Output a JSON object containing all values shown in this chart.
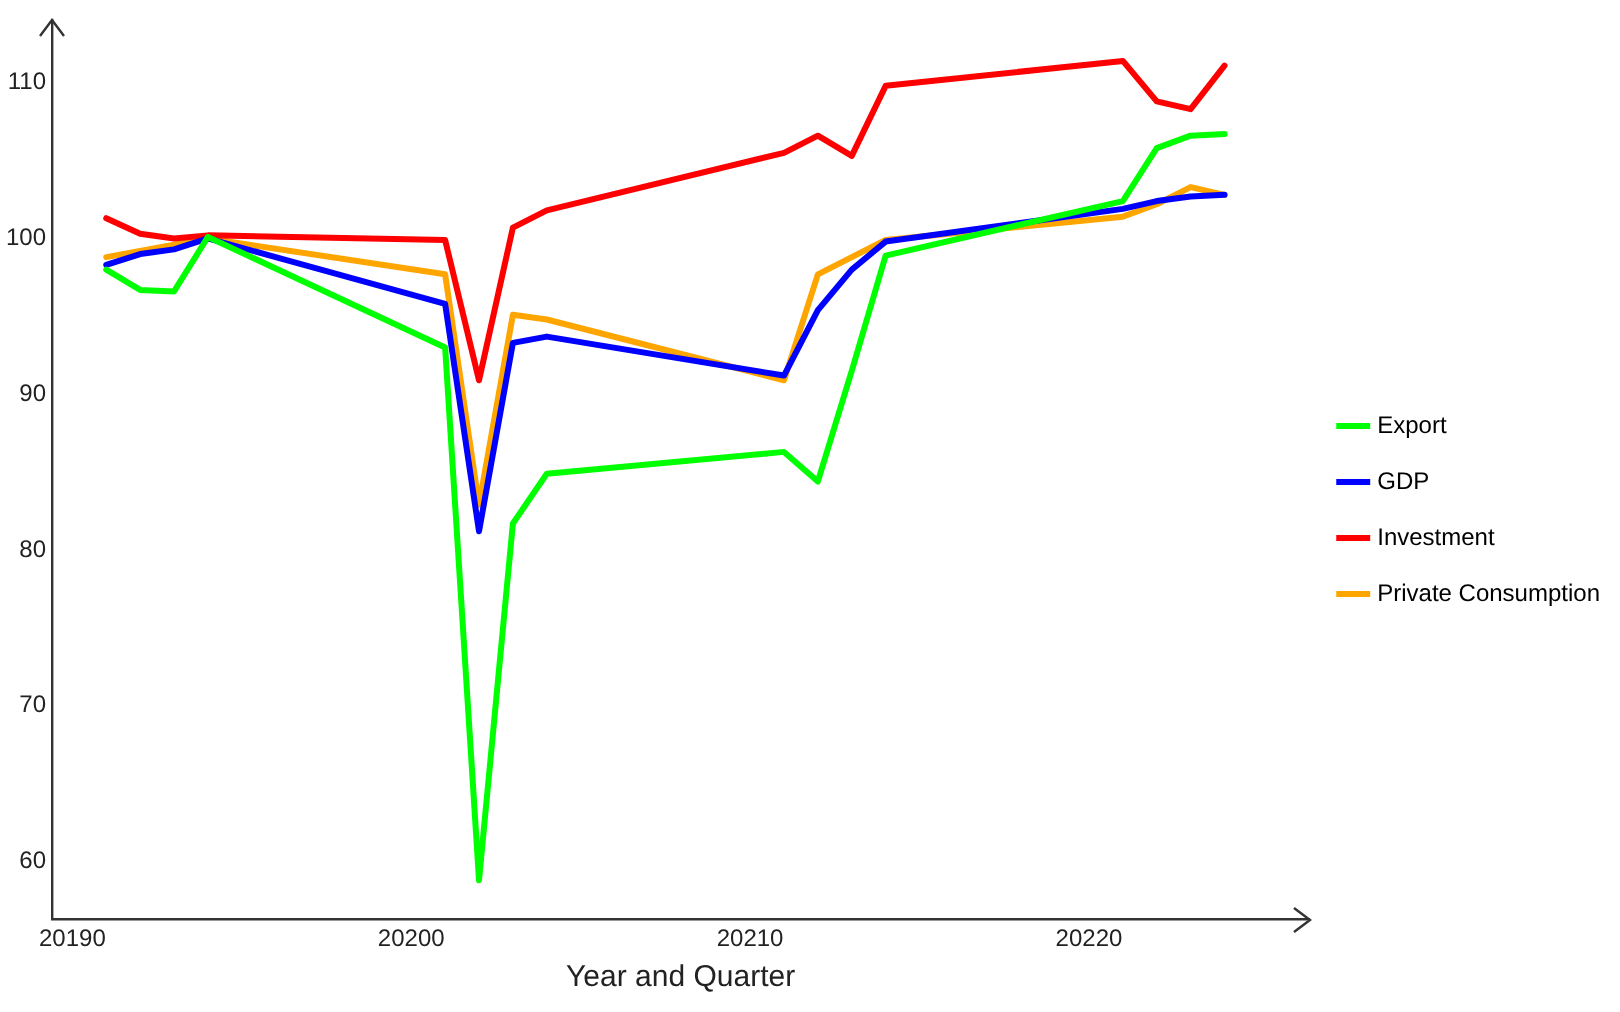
{
  "chart_data": {
    "type": "line",
    "xlabel": "Year and Quarter",
    "x": [
      20191,
      20192,
      20193,
      20194,
      20201,
      20202,
      20203,
      20204,
      20211,
      20212,
      20213,
      20214,
      20221,
      20222,
      20223,
      20224
    ],
    "series": [
      {
        "name": "Export",
        "color": "#00ff00",
        "values": [
          98.0,
          96.7,
          96.6,
          100.1,
          93.0,
          58.8,
          81.7,
          84.9,
          86.3,
          84.4,
          91.5,
          98.9,
          102.4,
          105.8,
          106.6,
          106.7
        ]
      },
      {
        "name": "GDP",
        "color": "#0000ff",
        "values": [
          98.3,
          99.0,
          99.3,
          100.0,
          95.8,
          81.2,
          93.3,
          93.7,
          91.2,
          95.4,
          98.0,
          99.8,
          101.9,
          102.4,
          102.7,
          102.8
        ]
      },
      {
        "name": "Investment",
        "color": "#ff0000",
        "values": [
          101.3,
          100.3,
          100.0,
          100.2,
          99.9,
          90.9,
          100.7,
          101.8,
          105.5,
          106.6,
          105.3,
          109.8,
          111.4,
          108.8,
          108.3,
          111.1
        ]
      },
      {
        "name": "Private Consumption",
        "color": "#ffa500",
        "values": [
          98.8,
          99.2,
          99.6,
          100.0,
          97.7,
          82.9,
          95.1,
          94.8,
          90.9,
          97.7,
          98.8,
          99.9,
          101.4,
          102.2,
          103.3,
          102.8
        ]
      }
    ],
    "xlim": [
      20189.4,
      20226.5
    ],
    "xticks": [
      20190,
      20200,
      20210,
      20220
    ],
    "ylim": [
      56.3,
      114
    ],
    "yticks": [
      60,
      70,
      80,
      90,
      100,
      110
    ],
    "grid": false,
    "legend": "right",
    "marker": "none",
    "line_style": "solid"
  }
}
